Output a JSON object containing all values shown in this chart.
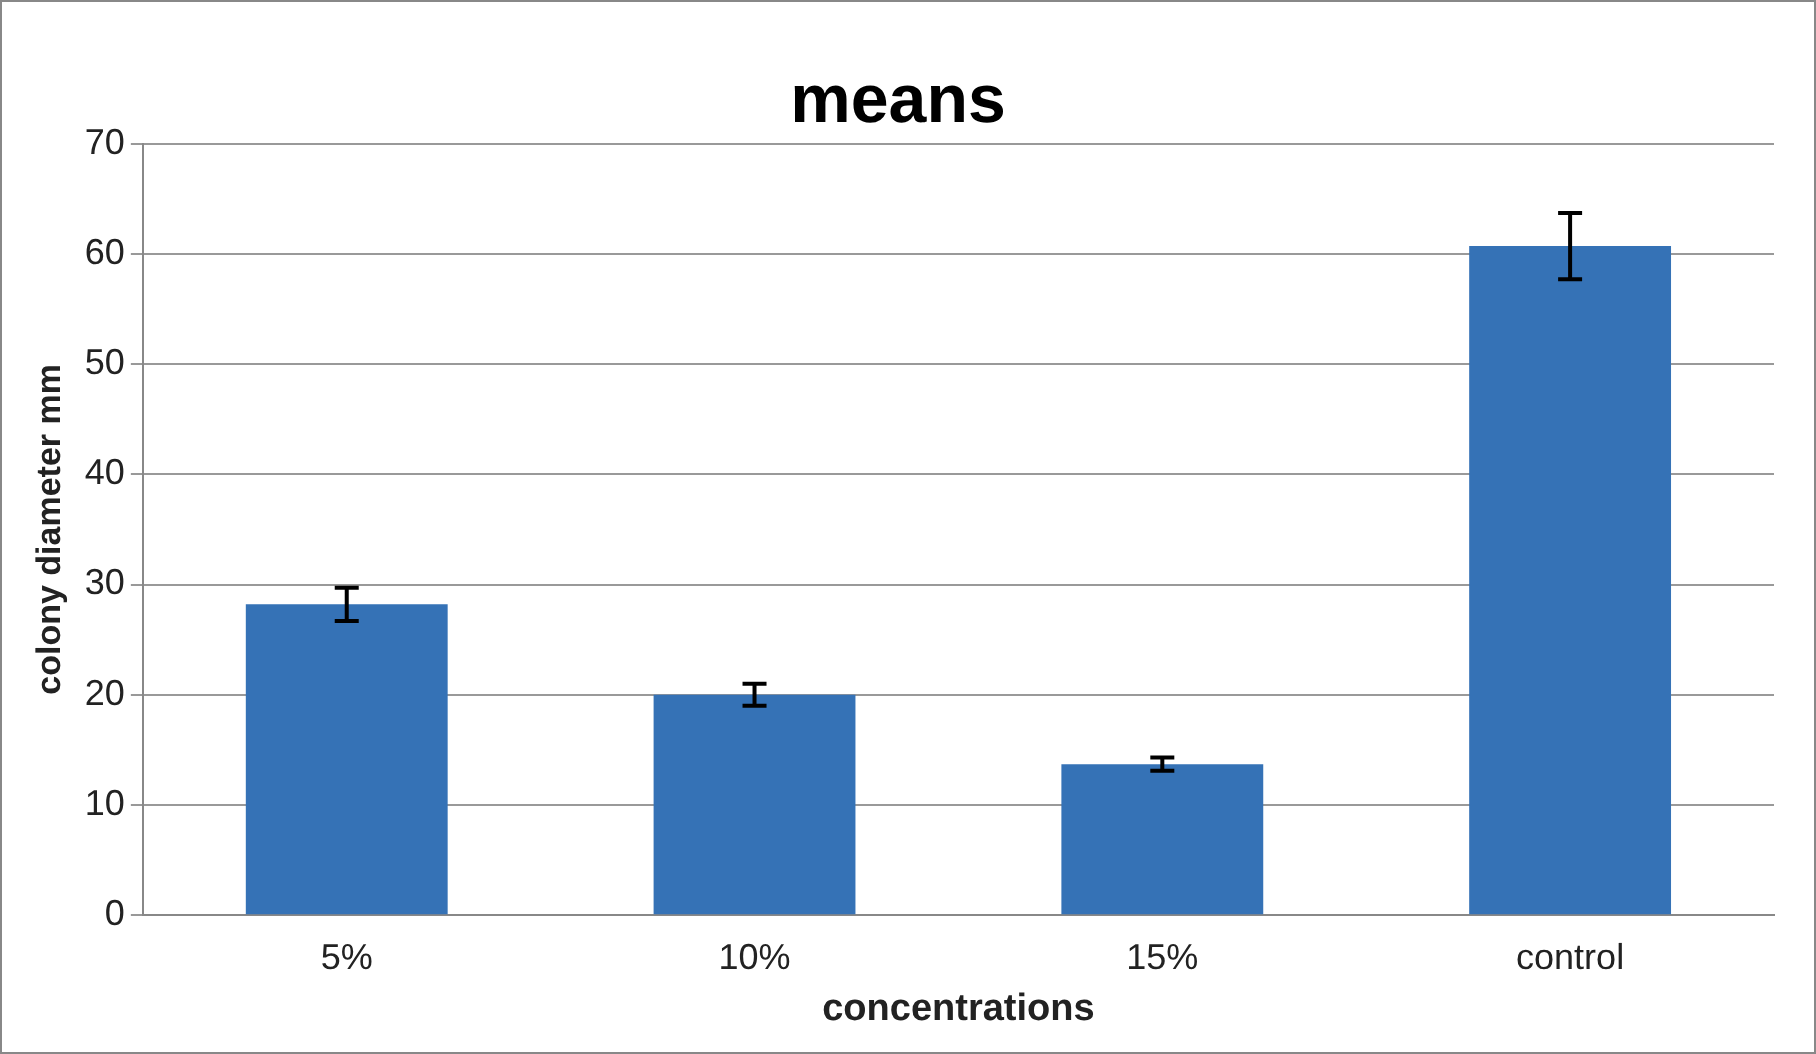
{
  "chart_data": {
    "type": "bar",
    "title": "means",
    "xlabel": "concentrations",
    "ylabel": "colony diameter mm",
    "categories": [
      "5%",
      "10%",
      "15%",
      "control"
    ],
    "values": [
      28.2,
      20.0,
      13.7,
      60.7
    ],
    "errors": [
      1.5,
      1.0,
      0.6,
      3.0
    ],
    "color": "#3572b6",
    "ylim": [
      0,
      70
    ],
    "yticks": [
      0,
      10,
      20,
      30,
      40,
      50,
      60,
      70
    ],
    "grid": "y",
    "legend": false
  }
}
